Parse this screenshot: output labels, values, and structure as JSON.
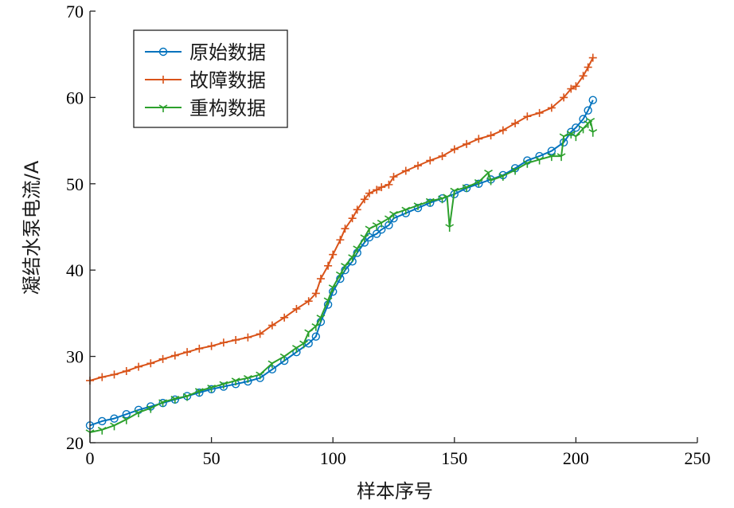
{
  "chart_data": {
    "type": "line",
    "xlabel": "样本序号",
    "ylabel": "凝结水泵电流/A",
    "xlim": [
      0,
      250
    ],
    "ylim": [
      20,
      70
    ],
    "xticks": [
      0,
      50,
      100,
      150,
      200,
      250
    ],
    "yticks": [
      20,
      30,
      40,
      50,
      60,
      70
    ],
    "grid": false,
    "legend_position": "top-left",
    "series": [
      {
        "name": "原始数据",
        "color": "#0072BD",
        "marker": "circle",
        "x": [
          0,
          5,
          10,
          15,
          20,
          25,
          30,
          35,
          40,
          45,
          50,
          55,
          60,
          65,
          70,
          75,
          80,
          85,
          90,
          93,
          95,
          98,
          100,
          103,
          105,
          108,
          110,
          113,
          115,
          118,
          120,
          123,
          125,
          130,
          135,
          140,
          145,
          150,
          155,
          160,
          165,
          170,
          175,
          180,
          185,
          190,
          195,
          198,
          200,
          203,
          205,
          207
        ],
        "y": [
          22.0,
          22.5,
          22.8,
          23.3,
          23.8,
          24.2,
          24.6,
          25.0,
          25.4,
          25.8,
          26.2,
          26.5,
          26.8,
          27.1,
          27.5,
          28.5,
          29.5,
          30.5,
          31.5,
          32.3,
          34.0,
          36.0,
          37.5,
          39.0,
          40.0,
          41.0,
          42.0,
          43.2,
          43.8,
          44.2,
          44.7,
          45.2,
          46.0,
          46.6,
          47.2,
          47.8,
          48.3,
          48.8,
          49.5,
          50.0,
          50.5,
          51.0,
          51.8,
          52.7,
          53.2,
          53.8,
          54.8,
          56.0,
          56.5,
          57.5,
          58.5,
          59.7
        ]
      },
      {
        "name": "故障数据",
        "color": "#D95319",
        "marker": "plus",
        "x": [
          0,
          5,
          10,
          15,
          20,
          25,
          30,
          35,
          40,
          45,
          50,
          55,
          60,
          65,
          70,
          75,
          80,
          85,
          90,
          93,
          95,
          98,
          100,
          103,
          105,
          108,
          110,
          113,
          115,
          118,
          120,
          123,
          125,
          130,
          135,
          140,
          145,
          150,
          155,
          160,
          165,
          170,
          175,
          180,
          185,
          190,
          195,
          198,
          200,
          203,
          205,
          207
        ],
        "y": [
          27.2,
          27.6,
          27.9,
          28.3,
          28.8,
          29.2,
          29.7,
          30.1,
          30.5,
          30.9,
          31.2,
          31.6,
          31.9,
          32.2,
          32.6,
          33.6,
          34.5,
          35.5,
          36.4,
          37.3,
          39.0,
          40.5,
          41.8,
          43.5,
          44.8,
          46.0,
          47.0,
          48.2,
          48.9,
          49.3,
          49.6,
          49.9,
          50.8,
          51.5,
          52.1,
          52.7,
          53.2,
          54.0,
          54.6,
          55.2,
          55.6,
          56.2,
          57.0,
          57.8,
          58.2,
          58.8,
          60.0,
          61.0,
          61.3,
          62.5,
          63.5,
          64.6
        ]
      },
      {
        "name": "重构数据",
        "color": "#2CA02C",
        "marker": "tri_down",
        "x": [
          0,
          5,
          10,
          15,
          20,
          25,
          30,
          35,
          40,
          45,
          50,
          55,
          60,
          65,
          70,
          75,
          80,
          85,
          88,
          90,
          93,
          95,
          98,
          100,
          103,
          105,
          108,
          110,
          113,
          115,
          118,
          120,
          123,
          125,
          130,
          135,
          140,
          145,
          147,
          148,
          150,
          155,
          160,
          164,
          165,
          170,
          175,
          180,
          185,
          190,
          194,
          195,
          198,
          200,
          203,
          205,
          206,
          207
        ],
        "y": [
          21.2,
          21.5,
          22.0,
          22.7,
          23.5,
          24.0,
          24.7,
          25.1,
          25.4,
          26.0,
          26.4,
          26.8,
          27.2,
          27.5,
          27.9,
          29.2,
          30.0,
          31.0,
          31.5,
          32.8,
          33.5,
          34.5,
          36.5,
          38.0,
          39.5,
          40.5,
          41.5,
          42.5,
          43.8,
          44.8,
          45.2,
          45.5,
          46.0,
          46.5,
          47.0,
          47.5,
          48.0,
          48.3,
          48.5,
          45.0,
          49.2,
          49.6,
          50.2,
          51.3,
          50.4,
          50.9,
          51.6,
          52.4,
          52.8,
          53.2,
          53.2,
          55.5,
          55.8,
          55.5,
          56.4,
          57.0,
          57.3,
          56.0
        ]
      }
    ]
  }
}
